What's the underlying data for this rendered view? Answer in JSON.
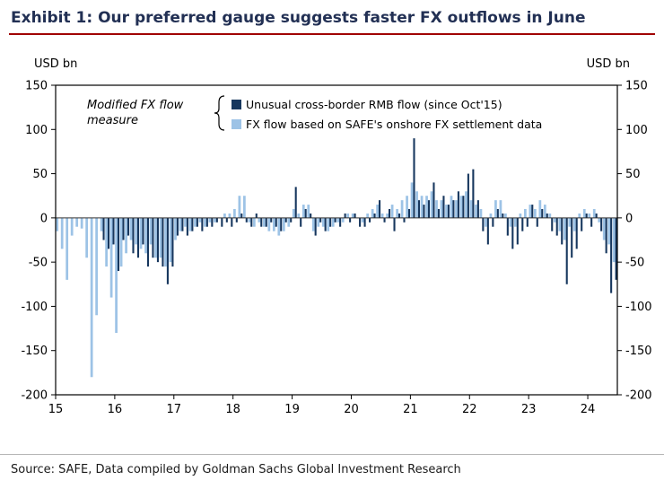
{
  "header": {
    "title": "Exhibit 1: Our preferred gauge suggests faster FX outflows in June"
  },
  "footer": {
    "source": "Source: SAFE, Data compiled by Goldman Sachs Global Investment Research"
  },
  "colors": {
    "navy": "#17375e",
    "light_blue": "#9dc3e6",
    "title_text": "#223054",
    "rule_red": "#a00000",
    "frame": "#000000"
  },
  "chart_data": {
    "type": "bar",
    "title": "",
    "ylabel_left": "USD bn",
    "ylabel_right": "USD bn",
    "ylim": [
      -200,
      150
    ],
    "yticks": [
      150,
      100,
      50,
      0,
      -50,
      -100,
      -150,
      -200
    ],
    "grid": false,
    "legend_position": "top-inside",
    "annotation": {
      "line1": "Modified FX flow",
      "line2": "measure"
    },
    "x_tick_labels": [
      "15",
      "16",
      "17",
      "18",
      "19",
      "20",
      "21",
      "22",
      "23",
      "24"
    ],
    "x_tick_month_indexes": [
      0,
      12,
      24,
      36,
      48,
      60,
      72,
      84,
      96,
      108
    ],
    "categories": [
      "2015-01",
      "2015-02",
      "2015-03",
      "2015-04",
      "2015-05",
      "2015-06",
      "2015-07",
      "2015-08",
      "2015-09",
      "2015-10",
      "2015-11",
      "2015-12",
      "2016-01",
      "2016-02",
      "2016-03",
      "2016-04",
      "2016-05",
      "2016-06",
      "2016-07",
      "2016-08",
      "2016-09",
      "2016-10",
      "2016-11",
      "2016-12",
      "2017-01",
      "2017-02",
      "2017-03",
      "2017-04",
      "2017-05",
      "2017-06",
      "2017-07",
      "2017-08",
      "2017-09",
      "2017-10",
      "2017-11",
      "2017-12",
      "2018-01",
      "2018-02",
      "2018-03",
      "2018-04",
      "2018-05",
      "2018-06",
      "2018-07",
      "2018-08",
      "2018-09",
      "2018-10",
      "2018-11",
      "2018-12",
      "2019-01",
      "2019-02",
      "2019-03",
      "2019-04",
      "2019-05",
      "2019-06",
      "2019-07",
      "2019-08",
      "2019-09",
      "2019-10",
      "2019-11",
      "2019-12",
      "2020-01",
      "2020-02",
      "2020-03",
      "2020-04",
      "2020-05",
      "2020-06",
      "2020-07",
      "2020-08",
      "2020-09",
      "2020-10",
      "2020-11",
      "2020-12",
      "2021-01",
      "2021-02",
      "2021-03",
      "2021-04",
      "2021-05",
      "2021-06",
      "2021-07",
      "2021-08",
      "2021-09",
      "2021-10",
      "2021-11",
      "2021-12",
      "2022-01",
      "2022-02",
      "2022-03",
      "2022-04",
      "2022-05",
      "2022-06",
      "2022-07",
      "2022-08",
      "2022-09",
      "2022-10",
      "2022-11",
      "2022-12",
      "2023-01",
      "2023-02",
      "2023-03",
      "2023-04",
      "2023-05",
      "2023-06",
      "2023-07",
      "2023-08",
      "2023-09",
      "2023-10",
      "2023-11",
      "2023-12",
      "2024-01",
      "2024-02",
      "2024-03",
      "2024-04",
      "2024-05",
      "2024-06"
    ],
    "series": [
      {
        "name": "Unusual cross-border RMB flow (since Oct'15)",
        "color": "#17375e",
        "values": [
          null,
          null,
          null,
          null,
          null,
          null,
          null,
          null,
          null,
          -25,
          -35,
          -30,
          -60,
          -25,
          -20,
          -40,
          -45,
          -30,
          -55,
          -45,
          -50,
          -55,
          -75,
          -55,
          -20,
          -15,
          -20,
          -15,
          -10,
          -15,
          -10,
          -10,
          -5,
          -10,
          -5,
          -10,
          -5,
          5,
          -5,
          -10,
          5,
          -10,
          -10,
          -5,
          -10,
          -15,
          -5,
          -5,
          35,
          -10,
          10,
          5,
          -20,
          -5,
          -15,
          -10,
          -5,
          -10,
          5,
          -5,
          5,
          -10,
          -10,
          -5,
          5,
          20,
          -5,
          10,
          -15,
          5,
          -5,
          10,
          90,
          20,
          15,
          20,
          40,
          10,
          25,
          15,
          20,
          30,
          25,
          50,
          55,
          20,
          -15,
          -30,
          -10,
          10,
          5,
          -20,
          -35,
          -30,
          -15,
          -10,
          15,
          -10,
          10,
          5,
          -15,
          -20,
          -30,
          -75,
          -45,
          -35,
          -15,
          5,
          -10,
          5,
          -15,
          -40,
          -85,
          -70
        ]
      },
      {
        "name": "FX flow based on SAFE's onshore FX settlement data",
        "color": "#9dc3e6",
        "values": [
          -15,
          -35,
          -70,
          -20,
          -10,
          -12,
          -45,
          -180,
          -110,
          -15,
          -55,
          -90,
          -130,
          -55,
          -40,
          -25,
          -30,
          -35,
          -40,
          -30,
          -45,
          -45,
          -55,
          -50,
          -25,
          -15,
          -10,
          -15,
          -10,
          -5,
          -10,
          -5,
          -5,
          0,
          5,
          5,
          10,
          25,
          25,
          -5,
          -10,
          -5,
          -10,
          -15,
          -15,
          -20,
          -15,
          -10,
          10,
          5,
          15,
          15,
          -15,
          -10,
          -10,
          -15,
          -10,
          -5,
          -5,
          5,
          5,
          0,
          -5,
          5,
          10,
          15,
          5,
          5,
          15,
          10,
          20,
          25,
          40,
          30,
          25,
          25,
          30,
          20,
          20,
          15,
          25,
          20,
          25,
          30,
          20,
          15,
          10,
          -10,
          5,
          20,
          20,
          5,
          -10,
          -10,
          5,
          10,
          15,
          10,
          20,
          15,
          5,
          -5,
          -15,
          -25,
          -10,
          -15,
          5,
          10,
          5,
          10,
          -5,
          -25,
          -30,
          -50
        ]
      }
    ]
  }
}
